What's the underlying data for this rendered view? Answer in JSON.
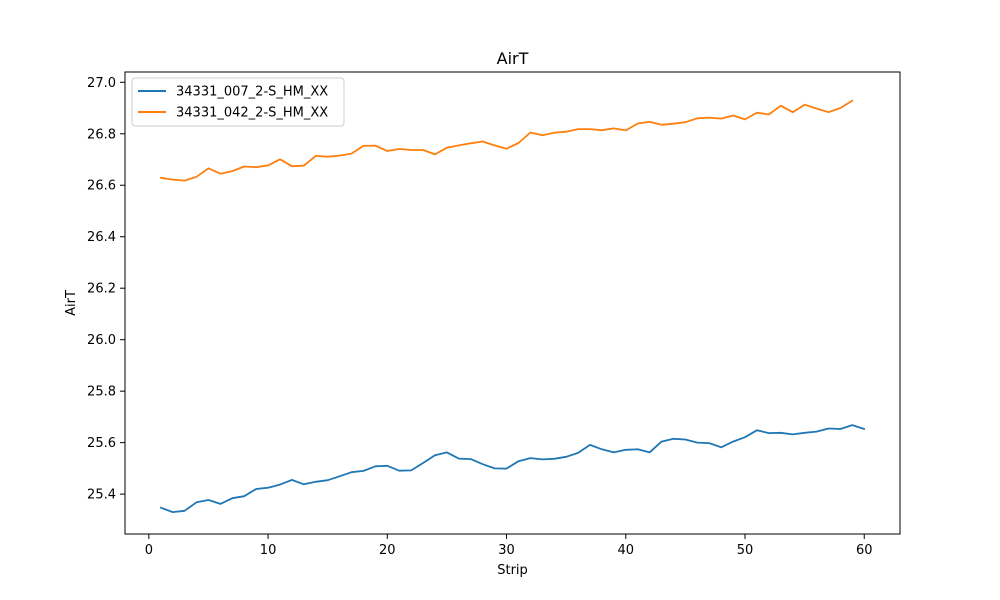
{
  "chart_data": {
    "type": "line",
    "title": "AirT",
    "xlabel": "Strip",
    "ylabel": "AirT",
    "xlim": [
      -2,
      63
    ],
    "ylim": [
      25.245,
      27.04
    ],
    "xticks": [
      0,
      10,
      20,
      30,
      40,
      50,
      60
    ],
    "yticks": [
      25.4,
      25.6,
      25.8,
      26.0,
      26.2,
      26.4,
      26.6,
      26.8,
      27.0
    ],
    "grid": false,
    "legend_position": "upper-left",
    "series": [
      {
        "name": "34331_007_2-S_HM_XX",
        "color": "#1f77b4",
        "x": [
          1,
          2,
          3,
          4,
          5,
          6,
          7,
          8,
          9,
          10,
          11,
          12,
          13,
          14,
          15,
          16,
          17,
          18,
          19,
          20,
          21,
          22,
          23,
          24,
          25,
          26,
          27,
          28,
          29,
          30,
          31,
          32,
          33,
          34,
          35,
          36,
          37,
          38,
          39,
          40,
          41,
          42,
          43,
          44,
          45,
          46,
          47,
          48,
          49,
          50,
          51,
          52,
          53,
          54,
          55,
          56,
          57,
          58,
          59,
          60
        ],
        "values": [
          25.347,
          25.33,
          25.335,
          25.368,
          25.377,
          25.362,
          25.384,
          25.392,
          25.42,
          25.425,
          25.437,
          25.455,
          25.438,
          25.448,
          25.454,
          25.469,
          25.485,
          25.49,
          25.508,
          25.51,
          25.491,
          25.492,
          25.521,
          25.551,
          25.562,
          25.538,
          25.536,
          25.516,
          25.5,
          25.499,
          25.528,
          25.54,
          25.535,
          25.537,
          25.545,
          25.56,
          25.591,
          25.574,
          25.562,
          25.572,
          25.574,
          25.562,
          25.604,
          25.615,
          25.612,
          25.6,
          25.598,
          25.582,
          25.604,
          25.621,
          25.648,
          25.637,
          25.638,
          25.632,
          25.638,
          25.643,
          25.655,
          25.653,
          25.668,
          25.653
        ]
      },
      {
        "name": "34331_042_2-S_HM_XX",
        "color": "#ff7f0e",
        "x": [
          1,
          2,
          3,
          4,
          5,
          6,
          7,
          8,
          9,
          10,
          11,
          12,
          13,
          14,
          15,
          16,
          17,
          18,
          19,
          20,
          21,
          22,
          23,
          24,
          25,
          26,
          27,
          28,
          29,
          30,
          31,
          32,
          33,
          34,
          35,
          36,
          37,
          38,
          39,
          40,
          41,
          42,
          43,
          44,
          45,
          46,
          47,
          48,
          49,
          50,
          51,
          52,
          53,
          54,
          55,
          56,
          57,
          58,
          59
        ],
        "values": [
          26.629,
          26.622,
          26.618,
          26.633,
          26.666,
          26.645,
          26.655,
          26.673,
          26.67,
          26.677,
          26.701,
          26.674,
          26.676,
          26.714,
          26.711,
          26.715,
          26.723,
          26.753,
          26.754,
          26.733,
          26.741,
          26.737,
          26.737,
          26.72,
          26.746,
          26.755,
          26.763,
          26.77,
          26.755,
          26.742,
          26.764,
          26.805,
          26.794,
          26.804,
          26.808,
          26.818,
          26.818,
          26.814,
          26.821,
          26.813,
          26.84,
          26.846,
          26.835,
          26.839,
          26.845,
          26.86,
          26.863,
          26.859,
          26.871,
          26.856,
          26.882,
          26.875,
          26.909,
          26.884,
          26.913,
          26.898,
          26.884,
          26.9,
          26.929
        ]
      }
    ]
  }
}
